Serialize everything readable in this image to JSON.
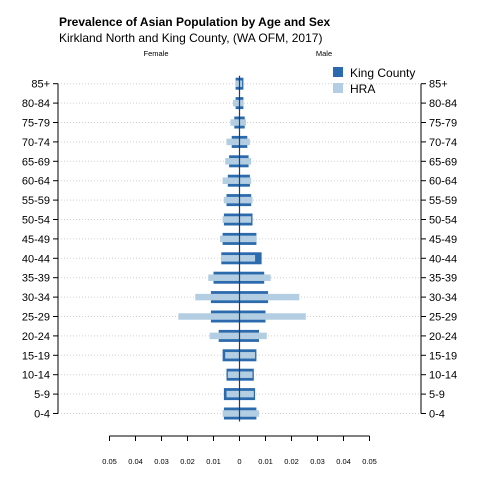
{
  "chart_data": {
    "type": "bar",
    "subtype": "population-pyramid",
    "title": "Prevalence of Asian Population by Age and Sex",
    "subtitle": "Kirkland North and King County, (WA OFM, 2017)",
    "left_label": "Female",
    "right_label": "Male",
    "categories": [
      "0-4",
      "5-9",
      "10-14",
      "15-19",
      "20-24",
      "25-29",
      "30-34",
      "35-39",
      "40-44",
      "45-49",
      "50-54",
      "55-59",
      "60-64",
      "65-69",
      "70-74",
      "75-79",
      "80-84",
      "85+"
    ],
    "x_ticks": [
      -0.05,
      -0.04,
      -0.03,
      -0.02,
      -0.01,
      0,
      0.01,
      0.02,
      0.03,
      0.04,
      0.05
    ],
    "x_tick_labels": [
      "0.05",
      "0.04",
      "0.03",
      "0.02",
      "0.01",
      "0",
      "0.01",
      "0.02",
      "0.03",
      "0.04",
      "0.05"
    ],
    "xlim": [
      -0.05,
      0.05
    ],
    "grid": "dotted horizontal",
    "legend_position": "top-right",
    "series": [
      {
        "name": "King County",
        "color": "#2b6aad",
        "female": [
          0.006,
          0.006,
          0.005,
          0.0065,
          0.008,
          0.011,
          0.011,
          0.01,
          0.007,
          0.0065,
          0.006,
          0.005,
          0.0045,
          0.004,
          0.003,
          0.002,
          0.0015,
          0.0015
        ],
        "male": [
          0.0065,
          0.006,
          0.0055,
          0.0065,
          0.0075,
          0.01,
          0.011,
          0.0095,
          0.0085,
          0.0065,
          0.005,
          0.0045,
          0.004,
          0.0035,
          0.003,
          0.002,
          0.0015,
          0.0015
        ]
      },
      {
        "name": "HRA",
        "color": "#b3cee2",
        "female": [
          0.0065,
          0.005,
          0.0045,
          0.0055,
          0.0115,
          0.0235,
          0.017,
          0.012,
          0.007,
          0.0075,
          0.0065,
          0.006,
          0.0065,
          0.0055,
          0.005,
          0.0035,
          0.0025,
          0.0015
        ],
        "male": [
          0.0075,
          0.0055,
          0.005,
          0.006,
          0.0105,
          0.0255,
          0.023,
          0.012,
          0.006,
          0.0065,
          0.0045,
          0.005,
          0.0045,
          0.0045,
          0.004,
          0.0025,
          0.0015,
          0.001
        ]
      }
    ]
  }
}
